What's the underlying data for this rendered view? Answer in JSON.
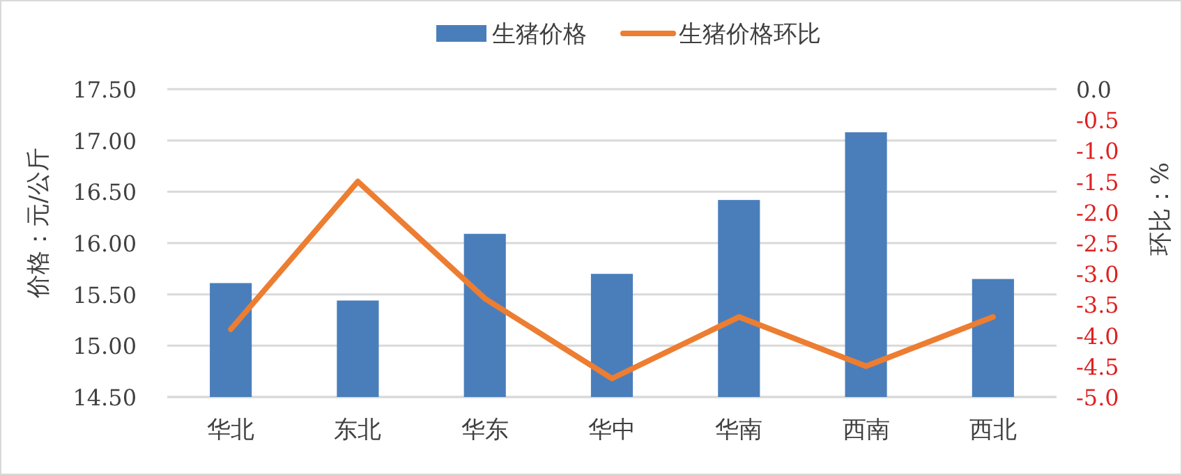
{
  "chart_data": {
    "type": "bar",
    "ylabel": "价格：元/公斤",
    "y2label": "环比：%",
    "categories": [
      "华北",
      "东北",
      "华东",
      "华中",
      "华南",
      "西南",
      "西北"
    ],
    "series": [
      {
        "name": "生猪价格",
        "color": "#4a7ebb",
        "values": [
          15.61,
          15.44,
          16.09,
          15.7,
          16.42,
          17.08,
          15.65
        ]
      },
      {
        "name": "生猪价格环比",
        "type": "line",
        "axis": "y2",
        "color": "#ed7d31",
        "values": [
          -3.9,
          -1.5,
          -3.4,
          -4.7,
          -3.7,
          -4.5,
          -3.7
        ]
      }
    ],
    "ylim": [
      14.5,
      17.5
    ],
    "yticks": [
      {
        "value": 14.5,
        "label": "14.50"
      },
      {
        "value": 15,
        "label": "15.00"
      },
      {
        "value": 15.5,
        "label": "15.50"
      },
      {
        "value": 16,
        "label": "16.00"
      },
      {
        "value": 16.5,
        "label": "16.50"
      },
      {
        "value": 17,
        "label": "17.00"
      },
      {
        "value": 17.5,
        "label": "17.50"
      }
    ],
    "y2lim": [
      -5,
      0
    ],
    "y2ticks": [
      {
        "value": -5,
        "label": "-5.0"
      },
      {
        "value": -4.5,
        "label": "-4.5"
      },
      {
        "value": -4,
        "label": "-4.0"
      },
      {
        "value": -3.5,
        "label": "-3.5"
      },
      {
        "value": -3,
        "label": "-3.0"
      },
      {
        "value": -2.5,
        "label": "-2.5"
      },
      {
        "value": -2,
        "label": "-2.0"
      },
      {
        "value": -1.5,
        "label": "-1.5"
      },
      {
        "value": -1,
        "label": "-1.0"
      },
      {
        "value": -0.5,
        "label": "-0.5"
      },
      {
        "value": 0,
        "label": "0.0"
      }
    ],
    "grid": "y",
    "legend": "top"
  }
}
